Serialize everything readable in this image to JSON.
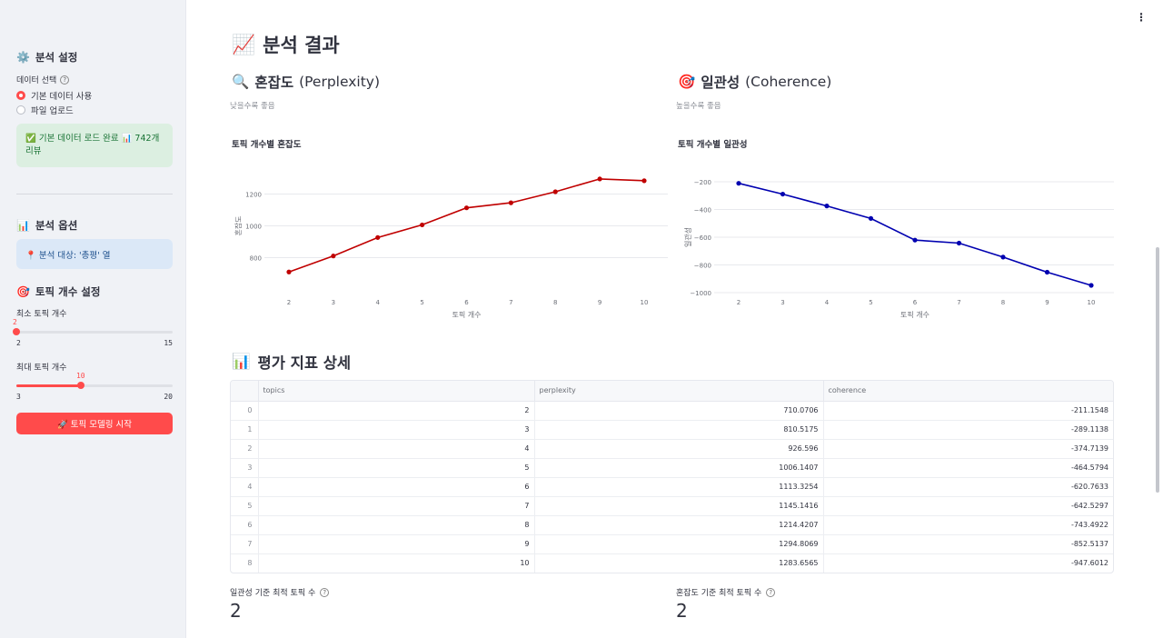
{
  "sidebar": {
    "settings_icon": "⚙️",
    "settings_title": "분석 설정",
    "data_select_label": "데이터 선택",
    "radio_options": [
      {
        "label": "기본 데이터 사용",
        "selected": true
      },
      {
        "label": "파일 업로드",
        "selected": false
      }
    ],
    "success_message": "✅ 기본 데이터 로드 완료 📊 742개 리뷰",
    "options_icon": "📊",
    "options_title": "분석 옵션",
    "info_message": "📍 분석 대상: '총평' 열",
    "topic_icon": "🎯",
    "topic_title": "토픽 개수 설정",
    "min_slider": {
      "label": "최소 토픽 개수",
      "value": "2",
      "min": "2",
      "max": "15",
      "value_num": 2,
      "min_num": 2,
      "max_num": 15
    },
    "max_slider": {
      "label": "최대 토픽 개수",
      "value": "10",
      "min": "3",
      "max": "20",
      "value_num": 10,
      "min_num": 3,
      "max_num": 20
    },
    "run_button": "🚀 토픽 모델링 시작"
  },
  "main": {
    "title_icon": "📈",
    "title": "분석 결과",
    "perplexity": {
      "icon": "🔍",
      "title_ko": "혼잡도",
      "title_en": "(Perplexity)",
      "caption": "낮을수록 좋음"
    },
    "coherence": {
      "icon": "🎯",
      "title_ko": "일관성",
      "title_en": "(Coherence)",
      "caption": "높을수록 좋음"
    },
    "table_section_icon": "📊",
    "table_section_title": "평가 지표 상세",
    "table": {
      "columns": [
        "",
        "topics",
        "perplexity",
        "coherence"
      ],
      "rows": [
        [
          "0",
          "2",
          "710.0706",
          "-211.1548"
        ],
        [
          "1",
          "3",
          "810.5175",
          "-289.1138"
        ],
        [
          "2",
          "4",
          "926.596",
          "-374.7139"
        ],
        [
          "3",
          "5",
          "1006.1407",
          "-464.5794"
        ],
        [
          "4",
          "6",
          "1113.3254",
          "-620.7633"
        ],
        [
          "5",
          "7",
          "1145.1416",
          "-642.5297"
        ],
        [
          "6",
          "8",
          "1214.4207",
          "-743.4922"
        ],
        [
          "7",
          "9",
          "1294.8069",
          "-852.5137"
        ],
        [
          "8",
          "10",
          "1283.6565",
          "-947.6012"
        ]
      ]
    },
    "metrics": [
      {
        "label": "일관성 기준 최적 토픽 수",
        "value": "2"
      },
      {
        "label": "혼잡도 기준 최적 토픽 수",
        "value": "2"
      }
    ]
  },
  "chart_data": [
    {
      "type": "line",
      "title": "토픽 개수별 혼잡도",
      "xlabel": "토픽 개수",
      "ylabel": "혼잡도",
      "x": [
        2,
        3,
        4,
        5,
        6,
        7,
        8,
        9,
        10
      ],
      "series": [
        {
          "values": [
            710.0706,
            810.5175,
            926.596,
            1006.1407,
            1113.3254,
            1145.1416,
            1214.4207,
            1294.8069,
            1283.6565
          ],
          "color": "#c00000"
        }
      ],
      "yticks": [
        800,
        1000,
        1200
      ],
      "ylim": [
        620,
        1380
      ],
      "grid": true
    },
    {
      "type": "line",
      "title": "토픽 개수별 일관성",
      "xlabel": "토픽 개수",
      "ylabel": "일관성",
      "x": [
        2,
        3,
        4,
        5,
        6,
        7,
        8,
        9,
        10
      ],
      "series": [
        {
          "values": [
            -211.1548,
            -289.1138,
            -374.7139,
            -464.5794,
            -620.7633,
            -642.5297,
            -743.4922,
            -852.5137,
            -947.6012
          ],
          "color": "#0000b0"
        }
      ],
      "yticks": [
        -200,
        -400,
        -600,
        -800,
        -1000
      ],
      "ylim": [
        -1000,
        -200
      ],
      "grid": true
    }
  ]
}
